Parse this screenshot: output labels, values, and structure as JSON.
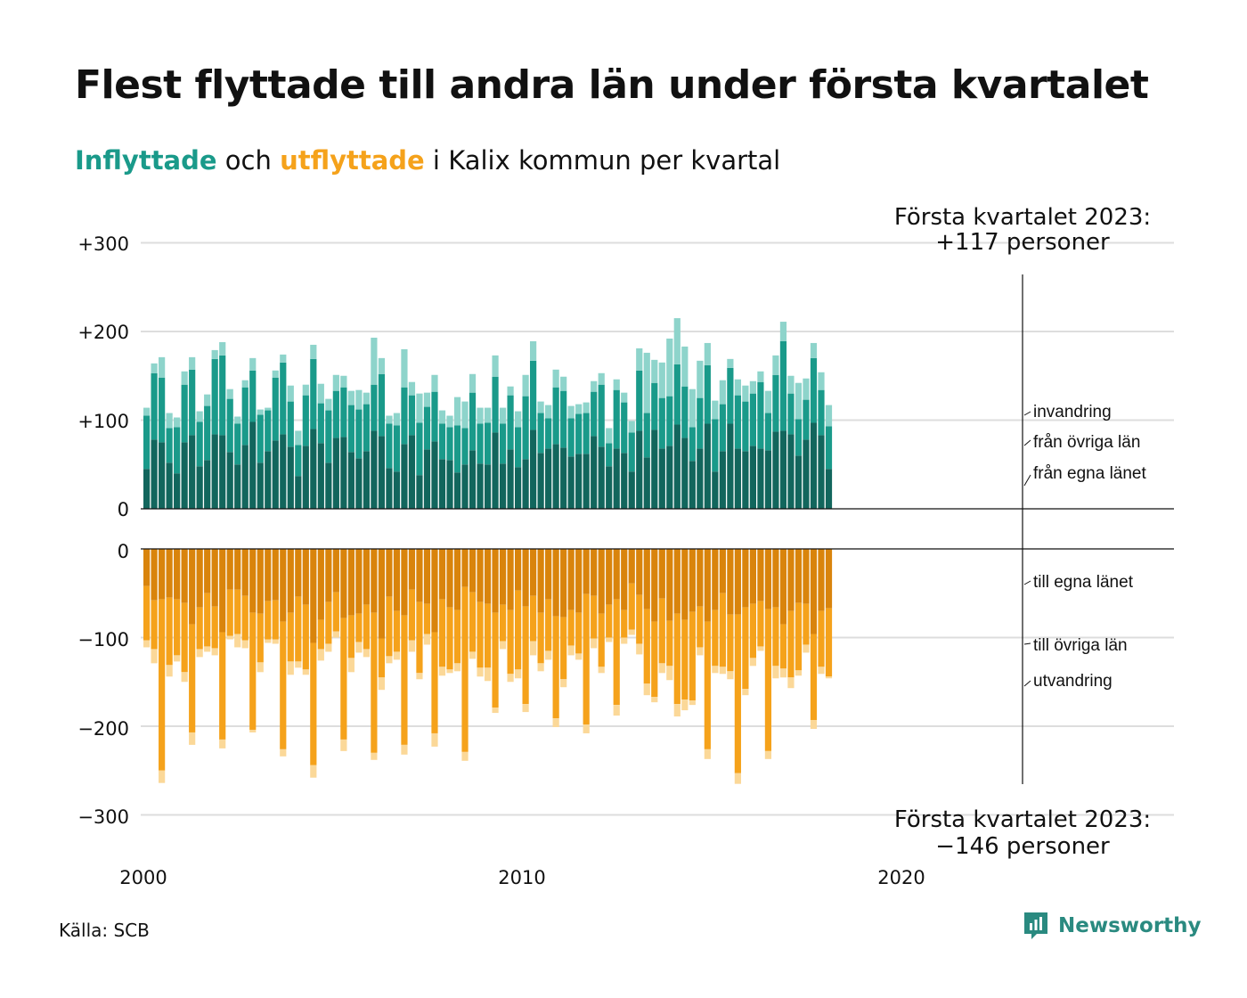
{
  "title": "Flest flyttade till andra län under första kvartalet",
  "subtitle": {
    "in_word": "Inflyttade",
    "mid": " och ",
    "out_word": "utflyttade",
    "rest": " i Kalix kommun per kvartal"
  },
  "source": "Källa: SCB",
  "brand": "Newsworthy",
  "colors": {
    "in_own": "#12665d",
    "in_other": "#1a9a8a",
    "in_immig": "#8ed4cb",
    "out_own": "#d9840c",
    "out_other": "#f5a21b",
    "out_emig": "#fbd898",
    "grid": "#dddddd"
  },
  "chart_data": {
    "type": "bar",
    "stacked": true,
    "x_start": "2000 Q1",
    "x_ticks": [
      "2000",
      "2010",
      "2020"
    ],
    "top_axis": {
      "ticks": [
        "+300",
        "+200",
        "+100",
        "0"
      ],
      "ylim": [
        0,
        300
      ]
    },
    "bottom_axis": {
      "ticks": [
        "0",
        "−100",
        "−200",
        "−300"
      ],
      "ylim": [
        -300,
        0
      ]
    },
    "in_labels": [
      "invandring",
      "från övriga län",
      "från egna länet"
    ],
    "out_labels": [
      "till egna länet",
      "till övriga län",
      "utvandring"
    ],
    "annotation_top": [
      "Första kvartalet 2023:",
      "+117 personer"
    ],
    "annotation_bottom": [
      "Första kvartalet 2023:",
      "−146 personer"
    ],
    "series": [
      {
        "name": "från egna länet",
        "values": [
          45,
          78,
          75,
          52,
          40,
          75,
          83,
          48,
          55,
          84,
          83,
          64,
          50,
          72,
          98,
          52,
          65,
          77,
          84,
          70,
          37,
          71,
          90,
          74,
          52,
          80,
          81,
          64,
          57,
          65,
          88,
          82,
          46,
          42,
          73,
          83,
          38,
          67,
          76,
          56,
          55,
          41,
          50,
          66,
          51,
          50,
          86,
          51,
          67,
          47,
          56,
          89,
          63,
          68,
          73,
          69,
          59,
          62,
          62,
          82,
          70,
          48,
          68,
          63,
          42,
          88,
          58,
          89,
          68,
          71,
          95,
          80,
          54,
          68,
          96,
          42,
          65,
          96,
          68,
          65,
          71,
          68,
          66,
          87,
          88,
          84,
          60,
          78,
          97,
          83,
          45
        ]
      },
      {
        "name": "från övriga län",
        "values": [
          60,
          75,
          73,
          39,
          52,
          65,
          74,
          50,
          61,
          85,
          90,
          60,
          46,
          65,
          58,
          54,
          46,
          71,
          81,
          51,
          35,
          57,
          79,
          45,
          59,
          53,
          56,
          53,
          55,
          53,
          52,
          70,
          50,
          52,
          64,
          45,
          59,
          48,
          56,
          40,
          37,
          53,
          41,
          65,
          45,
          47,
          63,
          45,
          61,
          45,
          71,
          78,
          45,
          34,
          64,
          64,
          43,
          45,
          46,
          50,
          70,
          26,
          66,
          57,
          44,
          68,
          50,
          53,
          57,
          56,
          68,
          58,
          38,
          57,
          66,
          59,
          53,
          63,
          60,
          56,
          59,
          75,
          42,
          64,
          101,
          46,
          41,
          45,
          73,
          51,
          48
        ]
      },
      {
        "name": "invandring",
        "values": [
          9,
          11,
          23,
          17,
          11,
          15,
          14,
          12,
          13,
          10,
          15,
          11,
          8,
          8,
          14,
          6,
          3,
          8,
          9,
          18,
          16,
          12,
          16,
          22,
          13,
          18,
          13,
          16,
          22,
          13,
          53,
          18,
          9,
          14,
          43,
          15,
          33,
          16,
          19,
          15,
          13,
          32,
          30,
          21,
          18,
          17,
          24,
          18,
          10,
          18,
          24,
          22,
          13,
          15,
          20,
          16,
          14,
          11,
          12,
          12,
          13,
          17,
          12,
          11,
          13,
          25,
          68,
          26,
          40,
          65,
          52,
          45,
          43,
          42,
          25,
          21,
          27,
          10,
          18,
          18,
          14,
          12,
          25,
          22,
          22,
          20,
          41,
          24,
          17,
          20,
          24
        ]
      },
      {
        "name": "till egna länet",
        "values": [
          -42,
          -58,
          -57,
          -55,
          -57,
          -61,
          -85,
          -66,
          -50,
          -65,
          -94,
          -46,
          -46,
          -53,
          -72,
          -73,
          -59,
          -58,
          -82,
          -72,
          -54,
          -63,
          -106,
          -80,
          -60,
          -49,
          -78,
          -75,
          -73,
          -63,
          -72,
          -101,
          -54,
          -70,
          -75,
          -46,
          -60,
          -62,
          -94,
          -57,
          -66,
          -69,
          -43,
          -49,
          -60,
          -62,
          -72,
          -63,
          -69,
          -47,
          -65,
          -53,
          -72,
          -57,
          -76,
          -77,
          -69,
          -72,
          -51,
          -53,
          -73,
          -63,
          -57,
          -69,
          -39,
          -52,
          -68,
          -82,
          -56,
          -81,
          -73,
          -80,
          -71,
          -65,
          -82,
          -69,
          -50,
          -74,
          -74,
          -66,
          -62,
          -59,
          -68,
          -66,
          -85,
          -70,
          -61,
          -62,
          -96,
          -70,
          -67
        ]
      },
      {
        "name": "till övriga län",
        "values": [
          -61,
          -55,
          -193,
          -76,
          -63,
          -78,
          -122,
          -47,
          -60,
          -47,
          -121,
          -52,
          -50,
          -50,
          -132,
          -55,
          -43,
          -44,
          -144,
          -55,
          -73,
          -73,
          -138,
          -33,
          -47,
          -44,
          -137,
          -48,
          -32,
          -50,
          -158,
          -44,
          -67,
          -46,
          -146,
          -57,
          -80,
          -34,
          -114,
          -76,
          -70,
          -60,
          -186,
          -67,
          -74,
          -72,
          -107,
          -41,
          -72,
          -89,
          -110,
          -51,
          -57,
          -58,
          -115,
          -70,
          -40,
          -46,
          -147,
          -48,
          -60,
          -37,
          -119,
          -31,
          -52,
          -55,
          -84,
          -85,
          -73,
          -51,
          -102,
          -90,
          -100,
          -46,
          -144,
          -63,
          -83,
          -64,
          -179,
          -92,
          -61,
          -51,
          -160,
          -66,
          -50,
          -75,
          -76,
          -46,
          -97,
          -63,
          -77
        ]
      },
      {
        "name": "utvandring",
        "values": [
          -8,
          -16,
          -14,
          -13,
          -7,
          -11,
          -14,
          -9,
          -6,
          -8,
          -10,
          -4,
          -15,
          -9,
          -3,
          -11,
          -4,
          -5,
          -8,
          -15,
          -7,
          -6,
          -14,
          -13,
          -9,
          -7,
          -13,
          -16,
          -12,
          -9,
          -8,
          -14,
          -8,
          -9,
          -11,
          -13,
          -7,
          -12,
          -15,
          -10,
          -4,
          -9,
          -10,
          -8,
          -10,
          -15,
          -6,
          -9,
          -9,
          -10,
          -9,
          -16,
          -9,
          -10,
          -10,
          -9,
          -11,
          -7,
          -10,
          -11,
          -7,
          -5,
          -12,
          -7,
          -6,
          -12,
          -13,
          -6,
          -11,
          -16,
          -14,
          -12,
          -5,
          -9,
          -11,
          -8,
          -8,
          -9,
          -12,
          -7,
          -9,
          -5,
          -9,
          -14,
          -10,
          -12,
          -6,
          -9,
          -10,
          -8,
          -2
        ]
      }
    ]
  }
}
